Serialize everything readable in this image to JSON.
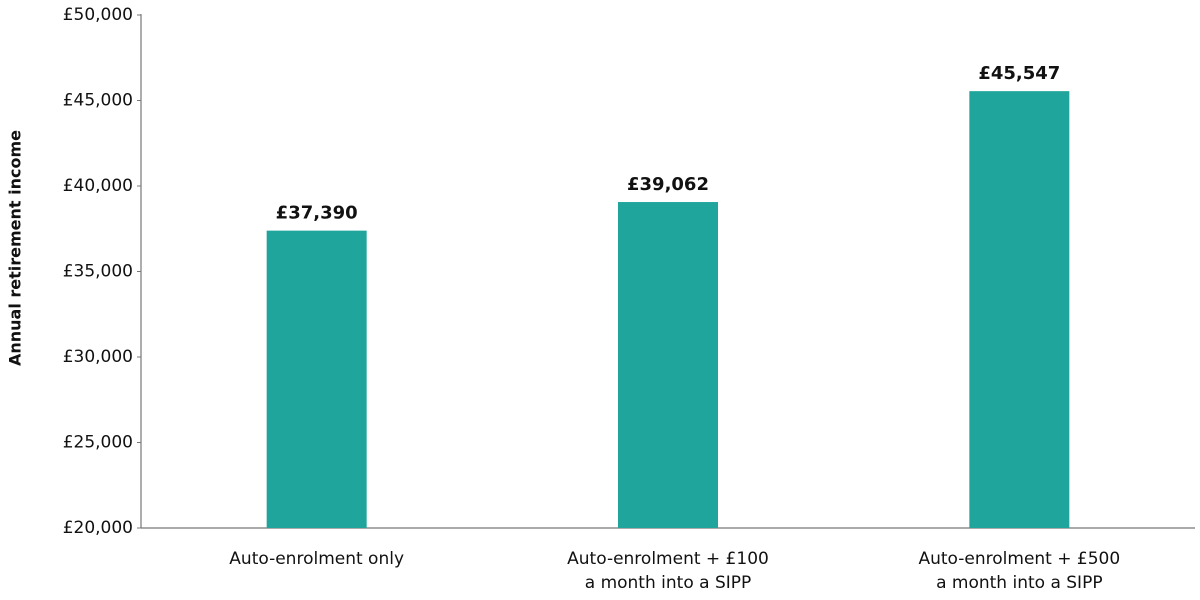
{
  "chart_data": {
    "type": "bar",
    "y_label": "Annual retirement income",
    "categories": [
      [
        "Auto-enrolment only"
      ],
      [
        "Auto-enrolment + £100",
        "a month into a SIPP"
      ],
      [
        "Auto-enrolment + £500",
        "a month into a SIPP"
      ]
    ],
    "values": [
      37390,
      39062,
      45547
    ],
    "value_labels": [
      "£37,390",
      "£39,062",
      "£45,547"
    ],
    "color": "#1fa59c",
    "ylim": [
      20000,
      50000
    ],
    "yticks": [
      {
        "value": 20000,
        "label": "£20,000"
      },
      {
        "value": 25000,
        "label": "£25,000"
      },
      {
        "value": 30000,
        "label": "£30,000"
      },
      {
        "value": 35000,
        "label": "£35,000"
      },
      {
        "value": 40000,
        "label": "£40,000"
      },
      {
        "value": 45000,
        "label": "£45,000"
      },
      {
        "value": 50000,
        "label": "£50,000"
      }
    ],
    "grid": false
  }
}
